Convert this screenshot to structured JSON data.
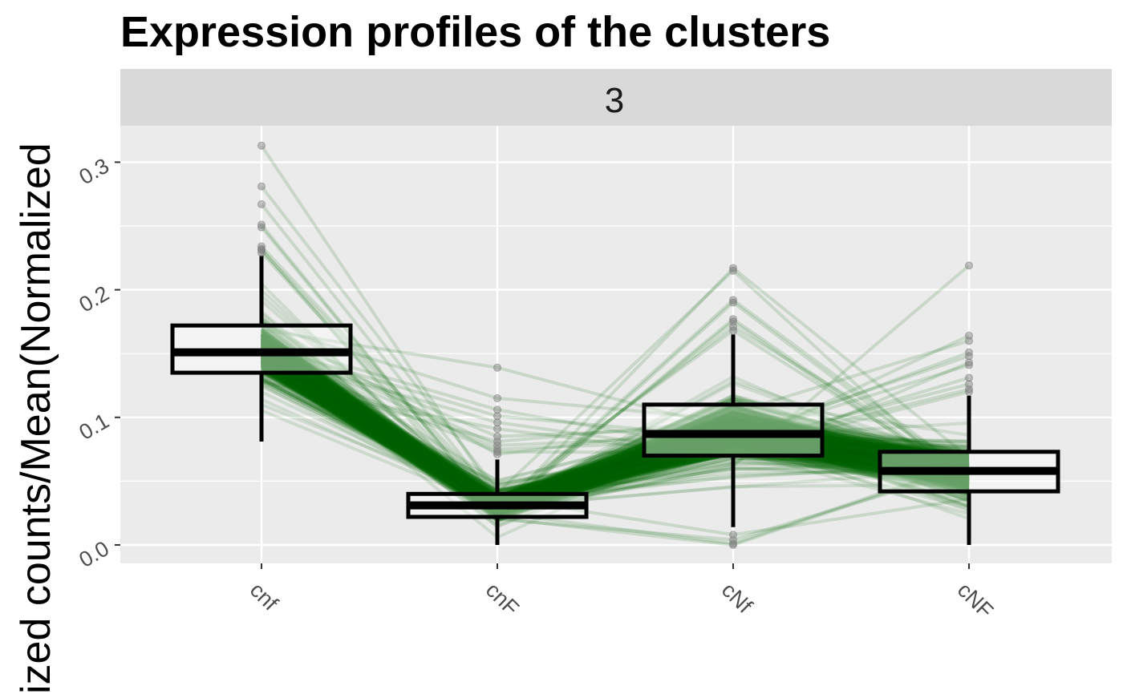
{
  "chart_data": {
    "type": "box",
    "title": "Expression profiles of the clusters",
    "facet_label": "3",
    "ylabel": "ized counts/Mean(Normalized",
    "xlabel": "",
    "categories": [
      "cnf",
      "cnF",
      "cNf",
      "cNF"
    ],
    "ylim": [
      -0.015,
      0.33
    ],
    "yticks": [
      0.0,
      0.1,
      0.2,
      0.3
    ],
    "ytick_labels": [
      "0.0",
      "0.1",
      "0.2",
      "0.3"
    ],
    "grid": true,
    "boxes": [
      {
        "category": "cnf",
        "min": 0.081,
        "q1": 0.135,
        "median": 0.151,
        "q3": 0.172,
        "max": 0.227,
        "outliers": [
          0.313,
          0.281,
          0.267,
          0.251,
          0.249,
          0.234,
          0.232,
          0.231,
          0.229
        ]
      },
      {
        "category": "cnF",
        "min": 0.0,
        "q1": 0.022,
        "median": 0.031,
        "q3": 0.04,
        "max": 0.067,
        "outliers": [
          0.139,
          0.115,
          0.106,
          0.101,
          0.096,
          0.091,
          0.085,
          0.081,
          0.078,
          0.075,
          0.073,
          0.071
        ]
      },
      {
        "category": "cNf",
        "min": 0.014,
        "q1": 0.07,
        "median": 0.087,
        "q3": 0.11,
        "max": 0.165,
        "outliers": [
          0.217,
          0.215,
          0.192,
          0.19,
          0.177,
          0.175,
          0.171,
          0.168,
          0.008,
          0.004,
          0.001,
          0.0
        ]
      },
      {
        "category": "cNF",
        "min": 0.0,
        "q1": 0.042,
        "median": 0.058,
        "q3": 0.073,
        "max": 0.117,
        "outliers": [
          0.219,
          0.164,
          0.16,
          0.151,
          0.148,
          0.143,
          0.141,
          0.131,
          0.126,
          0.122,
          0.12
        ]
      }
    ],
    "profile_lines": {
      "series_count": "many",
      "color": "#006400",
      "opacity": 0.12
    }
  },
  "colors": {
    "panel_background": "#ebebeb",
    "grid": "#ffffff",
    "strip_background": "#d9d9d9",
    "line_color": "#006400",
    "box_border": "#000000",
    "outlier": "#7f7f7f"
  }
}
